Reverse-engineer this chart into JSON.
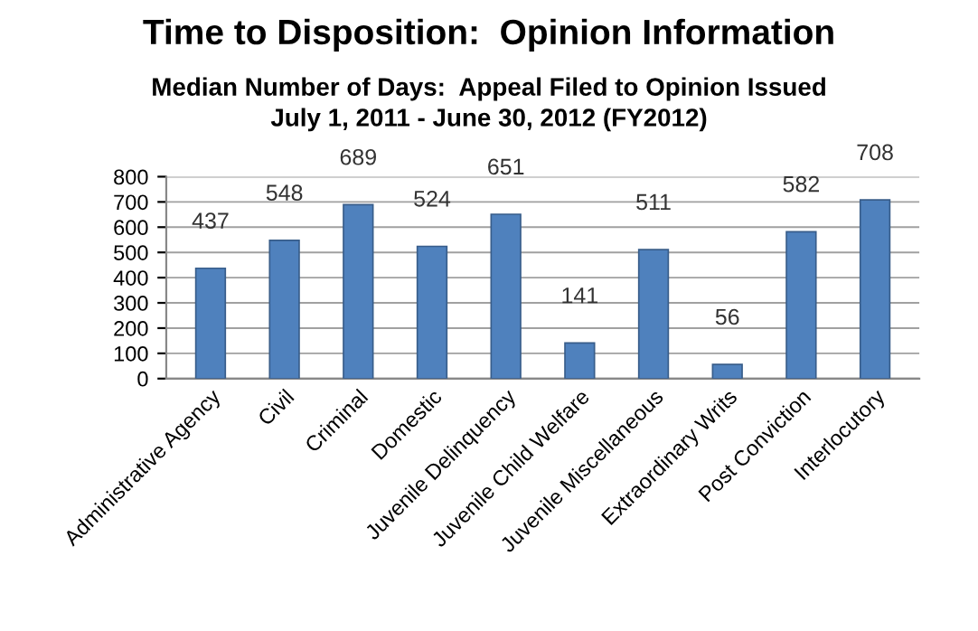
{
  "chart_data": {
    "type": "bar",
    "title": "Time to Disposition:  Opinion Information",
    "subtitle": "Median Number of Days:  Appeal Filed to Opinion Issued\nJuly 1, 2011 - June 30, 2012 (FY2012)",
    "categories": [
      "Administrative Agency",
      "Civil",
      "Criminal",
      "Domestic",
      "Juvenile Delinquency",
      "Juvenile Child Welfare",
      "Juvenile Miscellaneous",
      "Extraordinary Writs",
      "Post Conviction",
      "Interlocutory"
    ],
    "values": [
      437,
      548,
      689,
      524,
      651,
      141,
      511,
      56,
      582,
      708
    ],
    "color": "#4f81bd",
    "ylim": [
      0,
      800
    ],
    "yticks": [
      0,
      100,
      200,
      300,
      400,
      500,
      600,
      700,
      800
    ],
    "grid": "y",
    "data_labels": true,
    "legend": false
  }
}
